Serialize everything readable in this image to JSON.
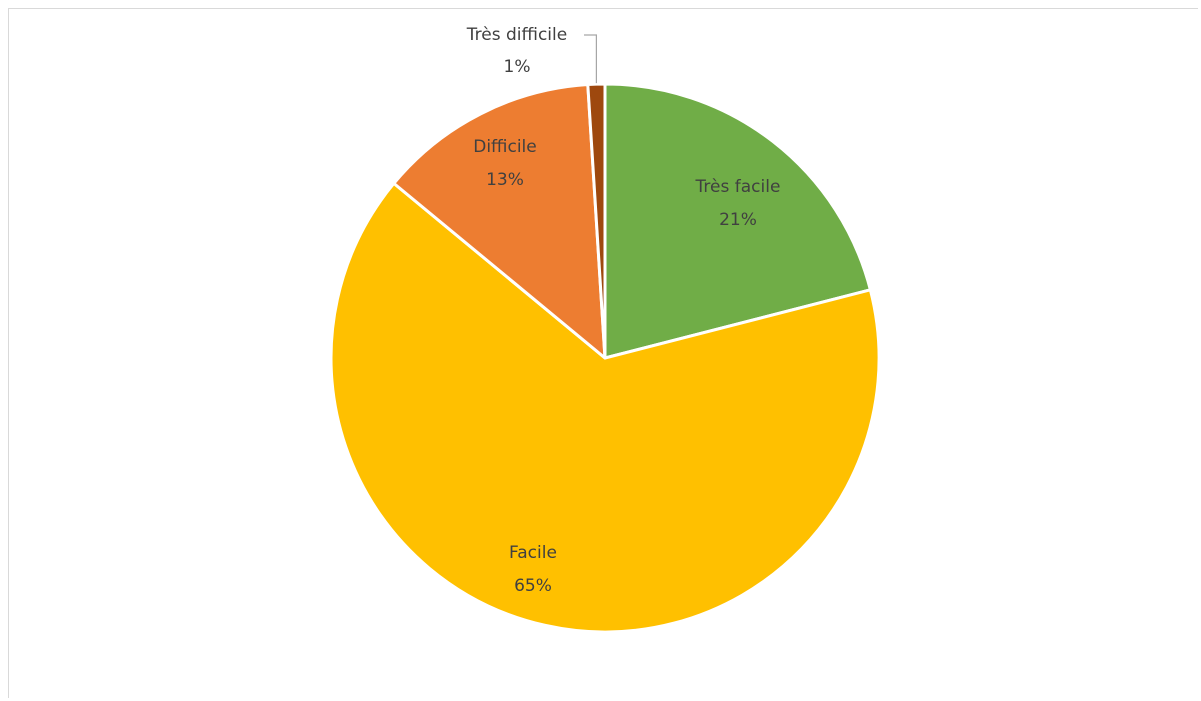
{
  "chart_data": {
    "type": "pie",
    "title": "",
    "legend": "none",
    "slices": [
      {
        "label": "Très facile",
        "value": 21,
        "value_label": "21%",
        "color": "#70ad47"
      },
      {
        "label": "Facile",
        "value": 65,
        "value_label": "65%",
        "color": "#ffc000"
      },
      {
        "label": "Difficile",
        "value": 13,
        "value_label": "13%",
        "color": "#ed7d31"
      },
      {
        "label": "Très difficile",
        "value": 1,
        "value_label": "1%",
        "color": "#9e480e"
      }
    ]
  }
}
